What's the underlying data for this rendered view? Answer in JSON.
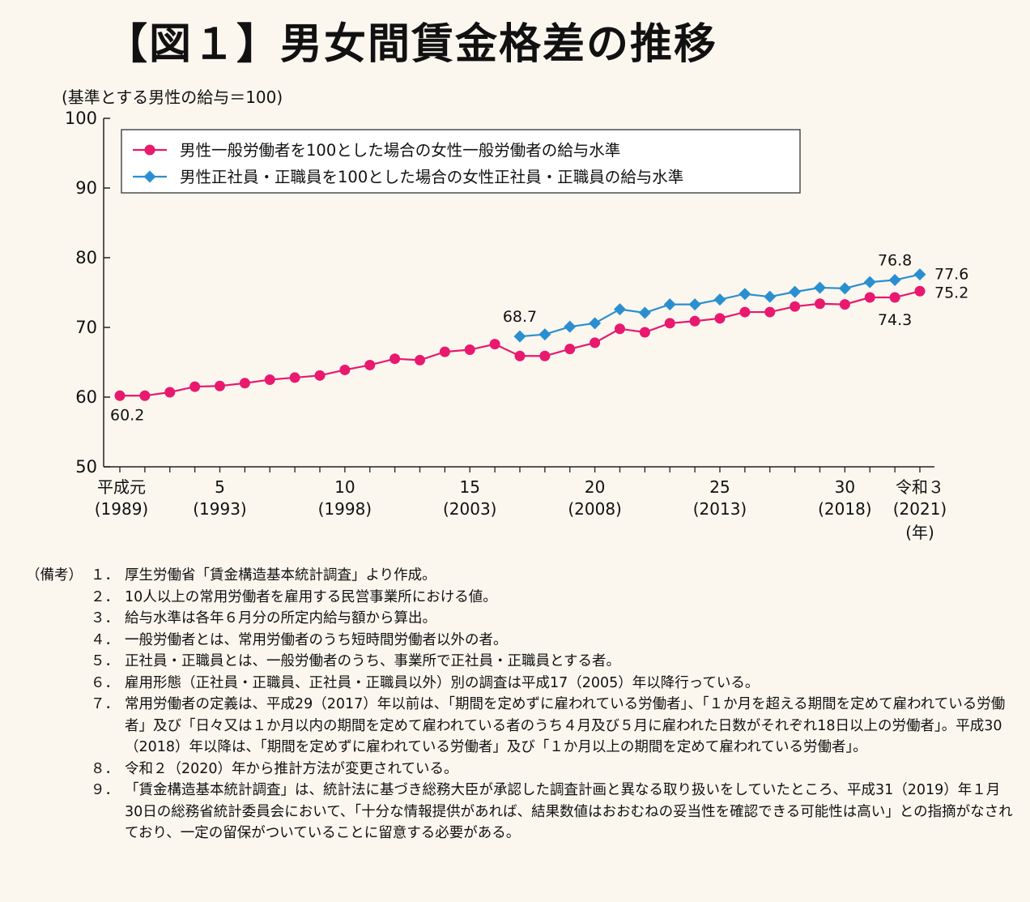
{
  "title": "【図１】男女間賃金格差の推移",
  "unit_label": "(基準とする男性の給与＝100)",
  "chart_data": {
    "type": "line",
    "ylim": [
      50,
      100
    ],
    "y_ticks": [
      50,
      60,
      70,
      80,
      90,
      100
    ],
    "x_range": [
      1989,
      2021
    ],
    "x_ticks": [
      {
        "x": 1989,
        "label": "平成元",
        "sublabel": "(1989)"
      },
      {
        "x": 1993,
        "label": "5",
        "sublabel": "(1993)"
      },
      {
        "x": 1998,
        "label": "10",
        "sublabel": "(1998)"
      },
      {
        "x": 2003,
        "label": "15",
        "sublabel": "(2003)"
      },
      {
        "x": 2008,
        "label": "20",
        "sublabel": "(2008)"
      },
      {
        "x": 2013,
        "label": "25",
        "sublabel": "(2013)"
      },
      {
        "x": 2018,
        "label": "30",
        "sublabel": "(2018)"
      },
      {
        "x": 2021,
        "label": "令和３",
        "sublabel": "(2021)"
      }
    ],
    "x_unit": "(年)",
    "legend_position": "top-left",
    "grid": false,
    "series": [
      {
        "name": "男性一般労働者を100とした場合の女性一般労働者の給与水準",
        "color": "#e8196e",
        "marker": "circle",
        "x": [
          1989,
          1990,
          1991,
          1992,
          1993,
          1994,
          1995,
          1996,
          1997,
          1998,
          1999,
          2000,
          2001,
          2002,
          2003,
          2004,
          2005,
          2006,
          2007,
          2008,
          2009,
          2010,
          2011,
          2012,
          2013,
          2014,
          2015,
          2016,
          2017,
          2018,
          2019,
          2020,
          2021
        ],
        "values": [
          60.2,
          60.2,
          60.7,
          61.5,
          61.6,
          62.0,
          62.5,
          62.8,
          63.1,
          63.9,
          64.6,
          65.5,
          65.3,
          66.5,
          66.8,
          67.6,
          65.9,
          65.9,
          66.9,
          67.8,
          69.8,
          69.3,
          70.6,
          70.9,
          71.3,
          72.2,
          72.2,
          73.0,
          73.4,
          73.3,
          74.3,
          74.3,
          75.2
        ],
        "labels": [
          {
            "x": 1989,
            "text": "60.2"
          },
          {
            "x": 2020,
            "text": "74.3"
          },
          {
            "x": 2021,
            "text": "75.2"
          }
        ]
      },
      {
        "name": "男性正社員・正職員を100とした場合の女性正社員・正職員の給与水準",
        "color": "#2a8fd0",
        "marker": "diamond",
        "x": [
          2005,
          2006,
          2007,
          2008,
          2009,
          2010,
          2011,
          2012,
          2013,
          2014,
          2015,
          2016,
          2017,
          2018,
          2019,
          2020,
          2021
        ],
        "values": [
          68.7,
          69.0,
          70.1,
          70.6,
          72.6,
          72.1,
          73.3,
          73.3,
          74.0,
          74.8,
          74.4,
          75.1,
          75.7,
          75.6,
          76.5,
          76.8,
          77.6
        ],
        "labels": [
          {
            "x": 2005,
            "text": "68.7"
          },
          {
            "x": 2020,
            "text": "76.8"
          },
          {
            "x": 2021,
            "text": "77.6"
          }
        ]
      }
    ]
  },
  "notes_label": "（備考）",
  "notes": [
    {
      "num": "１．",
      "text": "厚生労働省「賃金構造基本統計調査」より作成。"
    },
    {
      "num": "２．",
      "text": "10人以上の常用労働者を雇用する民営事業所における値。"
    },
    {
      "num": "３．",
      "text": "給与水準は各年６月分の所定内給与額から算出。"
    },
    {
      "num": "４．",
      "text": "一般労働者とは、常用労働者のうち短時間労働者以外の者。"
    },
    {
      "num": "５．",
      "text": "正社員・正職員とは、一般労働者のうち、事業所で正社員・正職員とする者。"
    },
    {
      "num": "６．",
      "text": "雇用形態（正社員・正職員、正社員・正職員以外）別の調査は平成17（2005）年以降行っている。"
    },
    {
      "num": "７．",
      "text": "常用労働者の定義は、平成29（2017）年以前は、「期間を定めずに雇われている労働者」、「１か月を超える期間を定めて雇われている労働者」及び「日々又は１か月以内の期間を定めて雇われている者のうち４月及び５月に雇われた日数がそれぞれ18日以上の労働者」。平成30（2018）年以降は、「期間を定めずに雇われている労働者」及び「１か月以上の期間を定めて雇われている労働者」。"
    },
    {
      "num": "８．",
      "text": "令和２（2020）年から推計方法が変更されている。"
    },
    {
      "num": "９．",
      "text": "「賃金構造基本統計調査」は、統計法に基づき総務大臣が承認した調査計画と異なる取り扱いをしていたところ、平成31（2019）年１月30日の総務省統計委員会において、「十分な情報提供があれば、結果数値はおおむねの妥当性を確認できる可能性は高い」との指摘がなされており、一定の留保がついていることに留意する必要がある。"
    }
  ]
}
